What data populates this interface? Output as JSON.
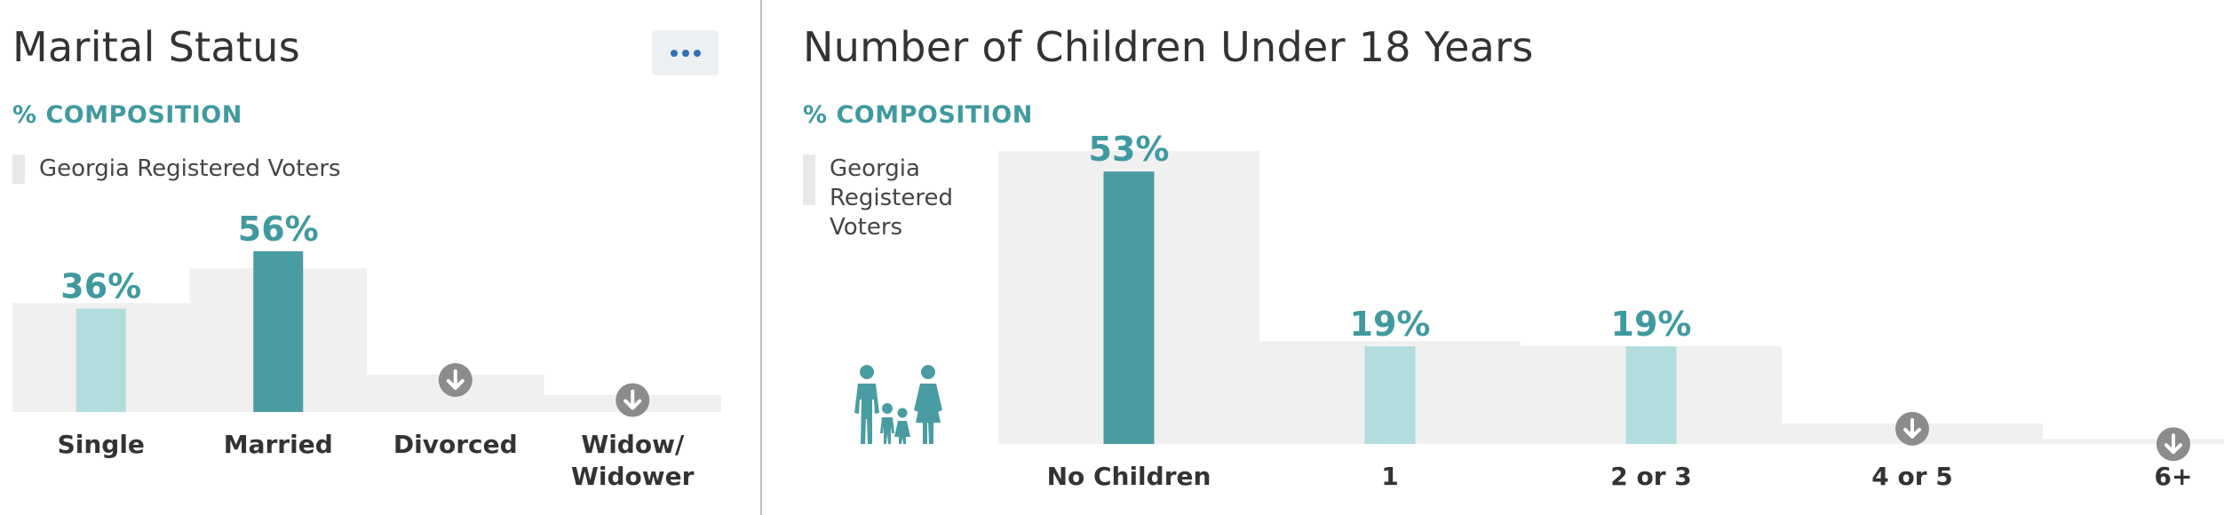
{
  "colors": {
    "accent": "#3f9aa0",
    "bar_primary": "#4a9ca3",
    "bar_secondary": "#b2dcde",
    "benchmark": "#f0f0f0",
    "down_icon": "#8c8c8c",
    "more_button_dots": "#2f6fb6"
  },
  "marital": {
    "title": "Marital Status",
    "subtitle": "% COMPOSITION",
    "legend_label": "Georgia Registered Voters",
    "more_button_icon": "ellipsis-icon",
    "down_icon_name": "arrow-down-circle-icon"
  },
  "children": {
    "title": "Number of Children Under 18 Years",
    "subtitle": "% COMPOSITION",
    "legend_label": "Georgia Registered Voters",
    "illustration_icon": "family-icon",
    "down_icon_name": "arrow-down-circle-icon"
  },
  "chart_data": [
    {
      "type": "bar",
      "title": "Marital Status",
      "subtitle": "% COMPOSITION",
      "ylim": [
        0,
        60
      ],
      "grid": false,
      "legend": "top-left",
      "categories": [
        "Single",
        "Married",
        "Divorced",
        "Widow/\nWidower"
      ],
      "series": [
        {
          "name": "Georgia Registered Voters",
          "style": "background-band",
          "values": [
            38,
            50,
            13,
            6
          ]
        },
        {
          "style": "bar",
          "values": [
            36,
            56,
            null,
            null
          ],
          "labels": [
            "36%",
            "56%",
            null,
            null
          ],
          "highlight": [
            false,
            true,
            false,
            false
          ],
          "below_threshold_icon": [
            false,
            false,
            true,
            true
          ]
        }
      ]
    },
    {
      "type": "bar",
      "title": "Number of Children Under 18 Years",
      "subtitle": "% COMPOSITION",
      "ylim": [
        0,
        57
      ],
      "grid": false,
      "legend": "top-left",
      "categories": [
        "No Children",
        "1",
        "2 or 3",
        "4 or 5",
        "6+"
      ],
      "series": [
        {
          "name": "Georgia Registered Voters",
          "style": "background-band",
          "values": [
            57,
            20,
            19,
            4,
            1
          ]
        },
        {
          "style": "bar",
          "values": [
            53,
            19,
            19,
            null,
            null
          ],
          "labels": [
            "53%",
            "19%",
            "19%",
            null,
            null
          ],
          "highlight": [
            true,
            false,
            false,
            false,
            false
          ],
          "below_threshold_icon": [
            false,
            false,
            false,
            true,
            true
          ]
        }
      ]
    }
  ]
}
